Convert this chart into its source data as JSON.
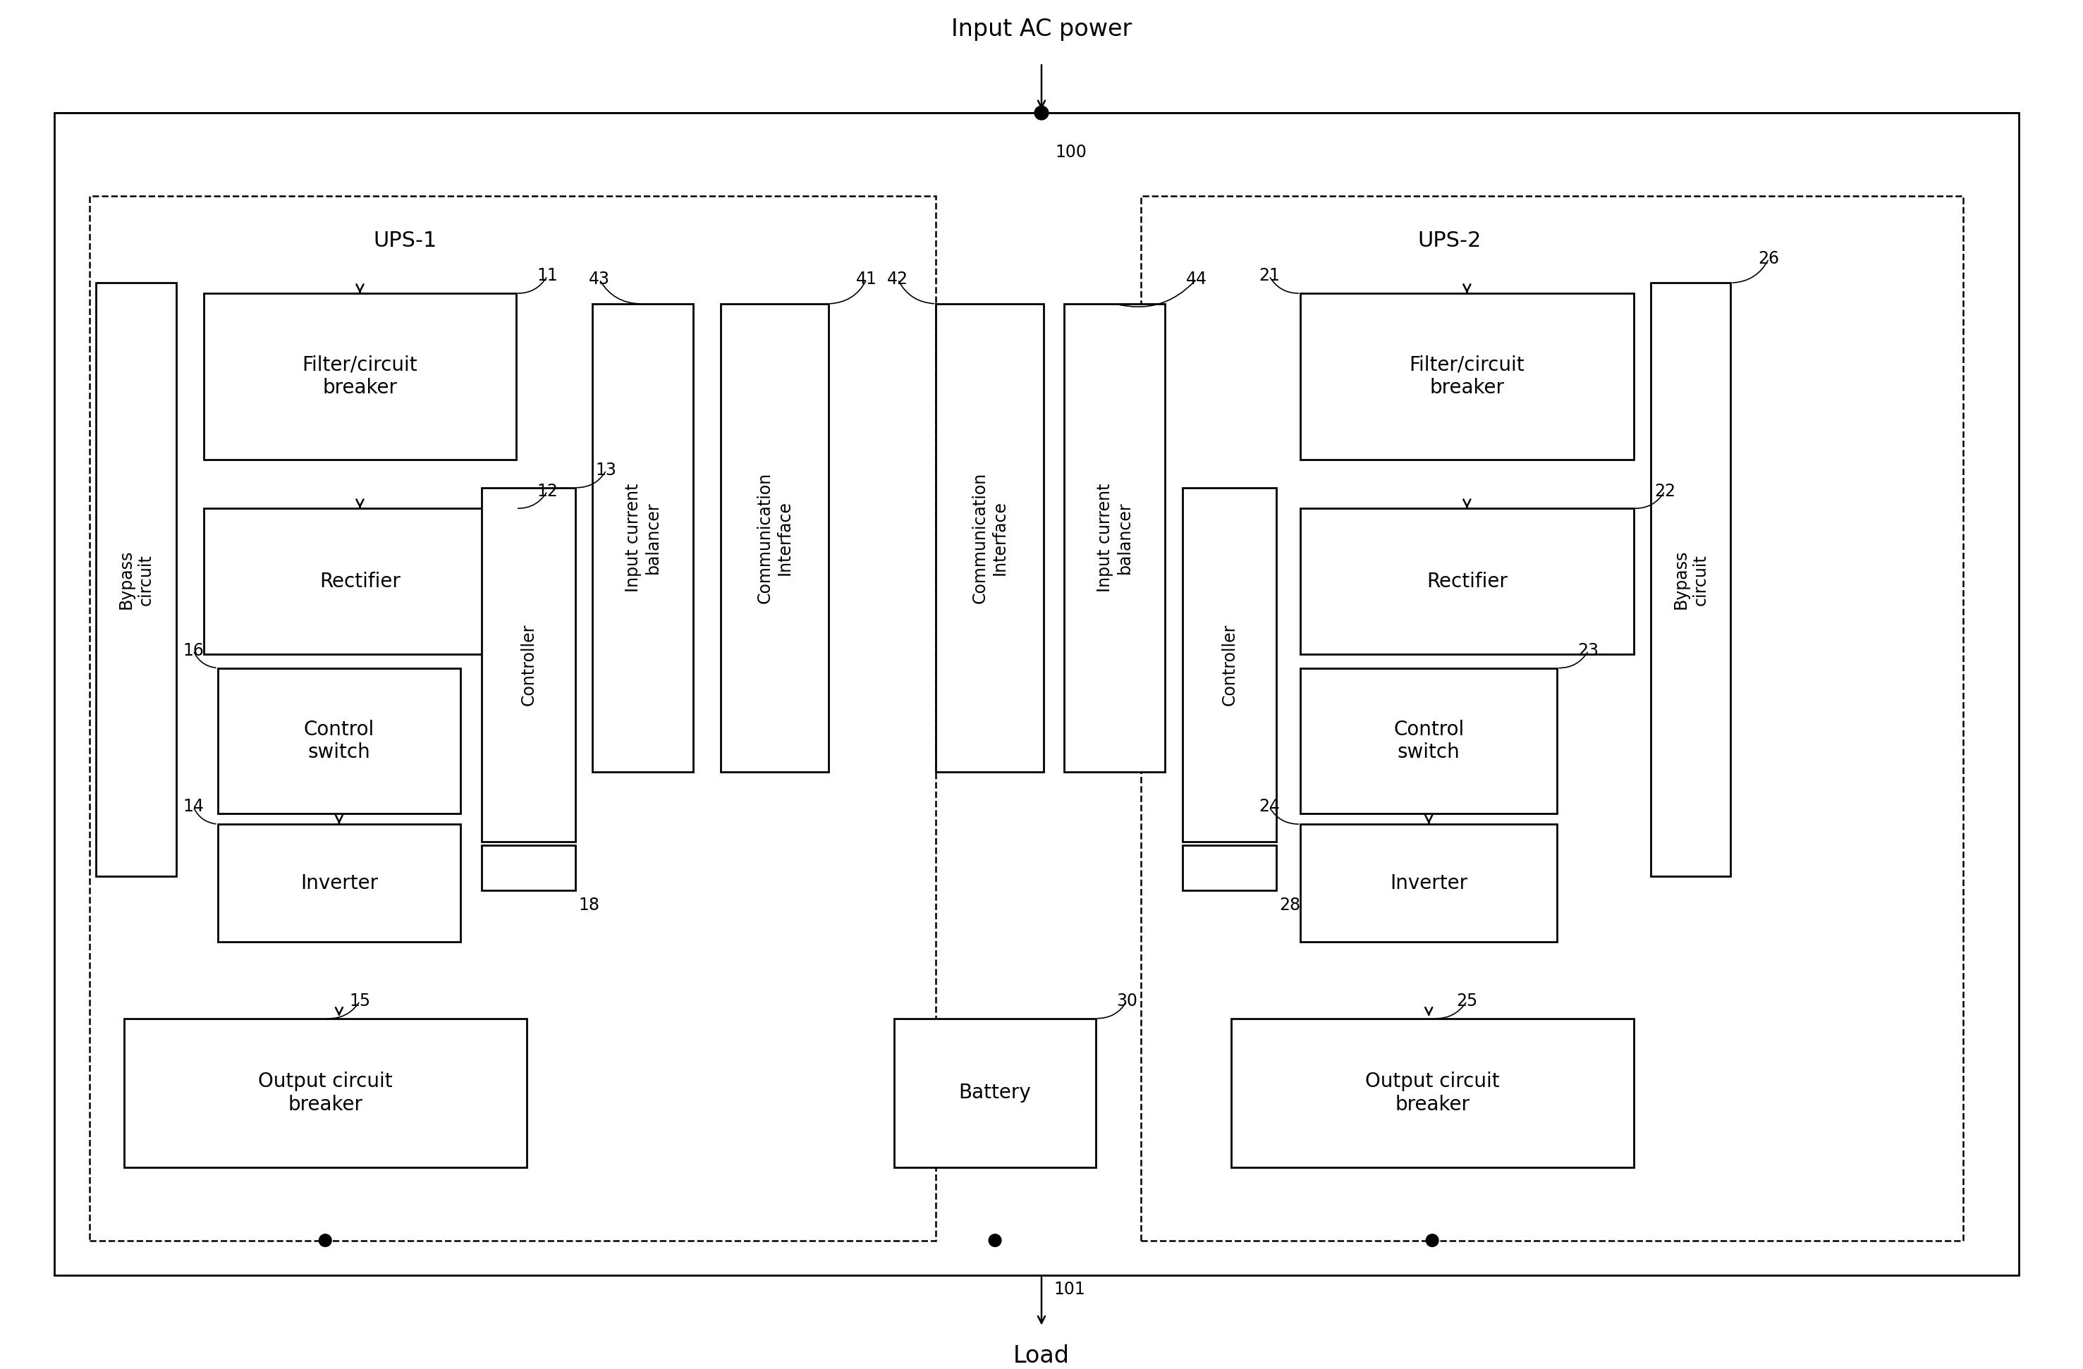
{
  "fig_width": 29.54,
  "fig_height": 19.42,
  "bg_color": "#ffffff",
  "title_label": "Input AC power",
  "load_label": "Load",
  "ups1_label": "UPS-1",
  "ups2_label": "UPS-2",
  "fs_label": 20,
  "fs_num": 17,
  "fs_title": 24,
  "fs_ups": 22,
  "fs_rot": 17
}
